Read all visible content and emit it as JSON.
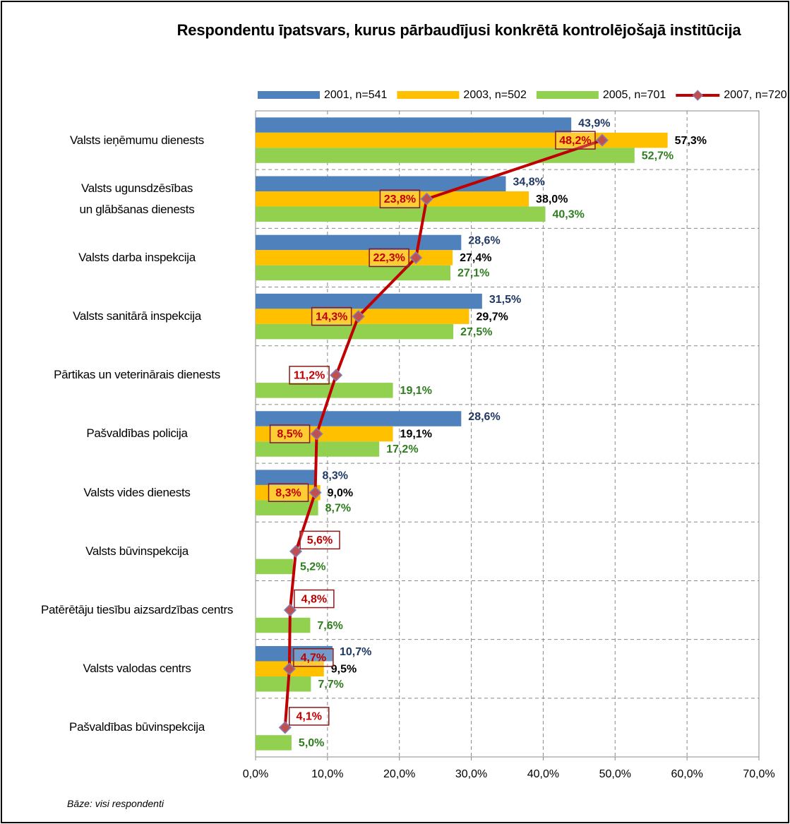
{
  "chart_data": {
    "type": "bar",
    "orientation": "horizontal",
    "title": "Respondentu īpatsvars, kurus pārbaudījusi konkrētā kontrolējošajā institūcija",
    "footnote": "Bāze: visi respondenti",
    "categories": [
      "Valsts ieņēmumu dienests",
      "Valsts ugunsdzēsības un glābšanas dienests",
      "Valsts darba inspekcija",
      "Valsts sanitārā inspekcija",
      "Pārtikas un veterinārais dienests",
      "Pašvaldības policija",
      "Valsts vides dienests",
      "Valsts būvinspekcija",
      "Patērētāju tiesību aizsardzības centrs",
      "Valsts valodas centrs",
      "Pašvaldības būvinspekcija"
    ],
    "series": [
      {
        "name": "2001, n=541",
        "type": "bar",
        "color": "#4f81bd",
        "label_color": "#1f3864",
        "values": [
          43.9,
          34.8,
          28.6,
          31.5,
          null,
          28.6,
          8.3,
          null,
          null,
          10.7,
          null
        ],
        "value_labels": [
          "43,9%",
          "34,8%",
          "28,6%",
          "31,5%",
          null,
          "28,6%",
          "8,3%",
          null,
          null,
          "10,7%",
          null
        ]
      },
      {
        "name": "2003, n=502",
        "type": "bar",
        "color": "#ffc000",
        "label_color": "#000000",
        "values": [
          57.3,
          38.0,
          27.4,
          29.7,
          null,
          19.1,
          9.0,
          null,
          null,
          9.5,
          null
        ],
        "value_labels": [
          "57,3%",
          "38,0%",
          "27,4%",
          "29,7%",
          null,
          "19,1%",
          "9,0%",
          null,
          null,
          "9,5%",
          null
        ]
      },
      {
        "name": "2005, n=701",
        "type": "bar",
        "color": "#92d050",
        "label_color": "#2e7d1e",
        "values": [
          52.7,
          40.3,
          27.1,
          27.5,
          19.1,
          17.2,
          8.7,
          5.2,
          7.6,
          7.7,
          5.0
        ],
        "value_labels": [
          "52,7%",
          "40,3%",
          "27,1%",
          "27,5%",
          "19,1%",
          "17,2%",
          "8,7%",
          "5,2%",
          "7,6%",
          "7,7%",
          "5,0%"
        ]
      },
      {
        "name": "2007, n=720",
        "type": "line",
        "color": "#c00000",
        "label_color": "#c00000",
        "values": [
          48.2,
          23.8,
          22.3,
          14.3,
          11.2,
          8.5,
          8.3,
          5.6,
          4.8,
          4.7,
          4.1
        ],
        "value_labels": [
          "48,2%",
          "23,8%",
          "22,3%",
          "14,3%",
          "11,2%",
          "8,5%",
          "8,3%",
          "5,6%",
          "4,8%",
          "4,7%",
          "4,1%"
        ]
      }
    ],
    "xlim": [
      0,
      70
    ],
    "xticks": [
      {
        "value": 0,
        "label": "0,0%"
      },
      {
        "value": 10,
        "label": "10,0%"
      },
      {
        "value": 20,
        "label": "20,0%"
      },
      {
        "value": 30,
        "label": "30,0%"
      },
      {
        "value": 40,
        "label": "40,0%"
      },
      {
        "value": 50,
        "label": "50,0%"
      },
      {
        "value": 60,
        "label": "60,0%"
      },
      {
        "value": 70,
        "label": "70,0%"
      }
    ],
    "grid": true,
    "legend": "top"
  }
}
